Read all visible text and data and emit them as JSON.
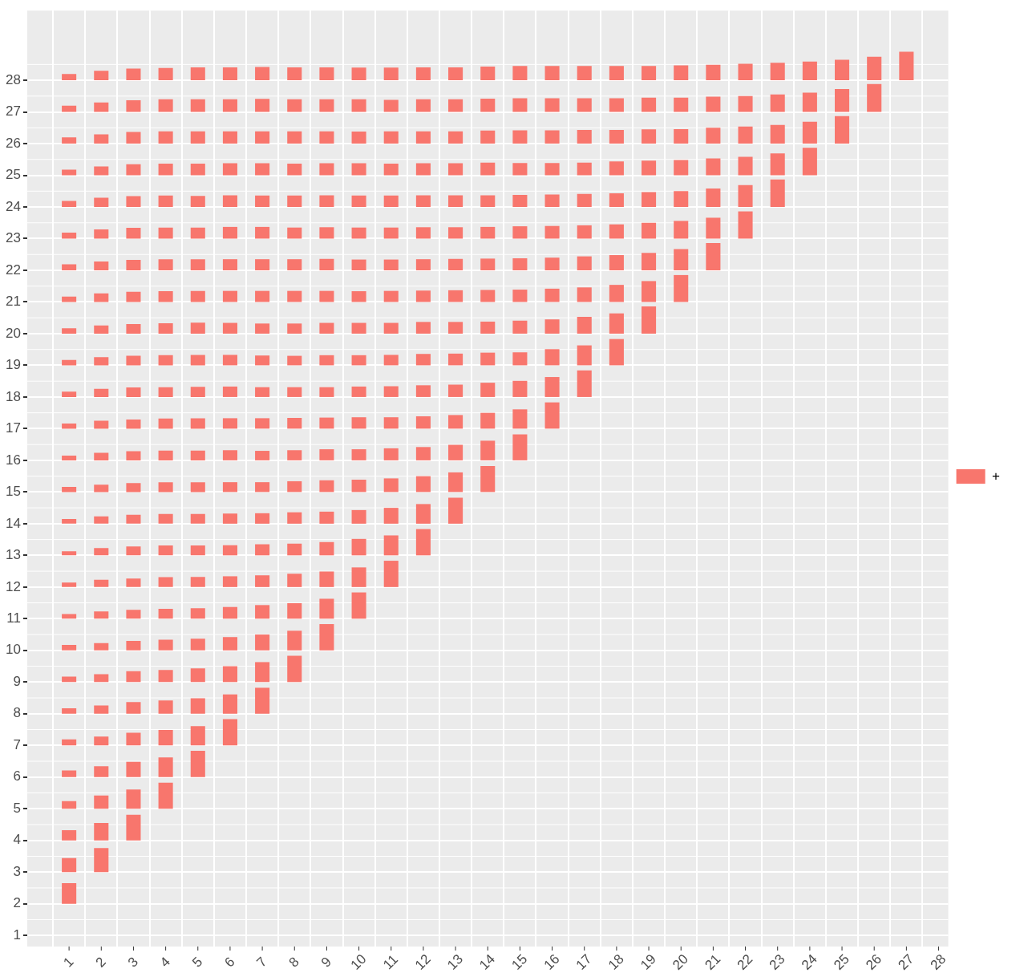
{
  "chart_data": {
    "type": "bar",
    "legend": "right",
    "grid": true,
    "xlim": [
      -0.3,
      28.3
    ],
    "ylim": [
      0.65,
      30.2
    ],
    "xticks": [
      1,
      2,
      3,
      4,
      5,
      6,
      7,
      8,
      9,
      10,
      11,
      12,
      13,
      14,
      15,
      16,
      17,
      18,
      19,
      20,
      21,
      22,
      23,
      24,
      25,
      26,
      27,
      28
    ],
    "yticks": [
      1,
      2,
      3,
      4,
      5,
      6,
      7,
      8,
      9,
      10,
      11,
      12,
      13,
      14,
      15,
      16,
      17,
      18,
      19,
      20,
      21,
      22,
      23,
      24,
      25,
      26,
      27,
      28
    ],
    "series": [
      {
        "name": "+",
        "color": "#f8766d",
        "x": [
          1
        ],
        "base": [
          2
        ],
        "values": [
          0.65
        ]
      },
      {
        "color": "#f8766d",
        "x": [
          1,
          2
        ],
        "base": [
          3,
          3
        ],
        "values": [
          0.44,
          0.76
        ]
      },
      {
        "color": "#f8766d",
        "x": [
          1,
          2,
          3
        ],
        "base": [
          4,
          4,
          4
        ],
        "values": [
          0.32,
          0.55,
          0.81
        ]
      },
      {
        "color": "#f8766d",
        "x": [
          1,
          2,
          3,
          4
        ],
        "base": [
          5,
          5,
          5,
          5
        ],
        "values": [
          0.24,
          0.42,
          0.61,
          0.82
        ]
      },
      {
        "color": "#f8766d",
        "x": [
          1,
          2,
          3,
          4,
          5
        ],
        "base": [
          6,
          6,
          6,
          6,
          6
        ],
        "values": [
          0.21,
          0.34,
          0.48,
          0.62,
          0.83
        ]
      },
      {
        "color": "#f8766d",
        "x": [
          1,
          2,
          3,
          4,
          5,
          6
        ],
        "base": [
          7,
          7,
          7,
          7,
          7,
          7
        ],
        "values": [
          0.19,
          0.28,
          0.4,
          0.49,
          0.61,
          0.83
        ]
      },
      {
        "color": "#f8766d",
        "x": [
          1,
          2,
          3,
          4,
          5,
          6,
          7
        ],
        "base": [
          8,
          8,
          8,
          8,
          8,
          8,
          8
        ],
        "values": [
          0.17,
          0.26,
          0.37,
          0.42,
          0.49,
          0.61,
          0.82
        ]
      },
      {
        "color": "#f8766d",
        "x": [
          1,
          2,
          3,
          4,
          5,
          6,
          7,
          8
        ],
        "base": [
          9,
          9,
          9,
          9,
          9,
          9,
          9,
          9
        ],
        "values": [
          0.17,
          0.25,
          0.34,
          0.38,
          0.43,
          0.5,
          0.63,
          0.83
        ]
      },
      {
        "color": "#f8766d",
        "x": [
          1,
          2,
          3,
          4,
          5,
          6,
          7,
          8,
          9
        ],
        "base": [
          10,
          10,
          10,
          10,
          10,
          10,
          10,
          10,
          10
        ],
        "values": [
          0.17,
          0.23,
          0.3,
          0.34,
          0.37,
          0.42,
          0.5,
          0.62,
          0.83
        ]
      },
      {
        "color": "#f8766d",
        "x": [
          1,
          2,
          3,
          4,
          5,
          6,
          7,
          8,
          9,
          10
        ],
        "base": [
          11,
          11,
          11,
          11,
          11,
          11,
          11,
          11,
          11,
          11
        ],
        "values": [
          0.15,
          0.23,
          0.28,
          0.31,
          0.33,
          0.37,
          0.43,
          0.49,
          0.63,
          0.83
        ]
      },
      {
        "color": "#f8766d",
        "x": [
          1,
          2,
          3,
          4,
          5,
          6,
          7,
          8,
          9,
          10,
          11
        ],
        "base": [
          12,
          12,
          12,
          12,
          12,
          12,
          12,
          12,
          12,
          12,
          12
        ],
        "values": [
          0.14,
          0.23,
          0.27,
          0.31,
          0.32,
          0.34,
          0.37,
          0.42,
          0.49,
          0.62,
          0.83
        ]
      },
      {
        "color": "#f8766d",
        "x": [
          1,
          2,
          3,
          4,
          5,
          6,
          7,
          8,
          9,
          10,
          11,
          12
        ],
        "base": [
          13,
          13,
          13,
          13,
          13,
          13,
          13,
          13,
          13,
          13,
          13,
          13
        ],
        "values": [
          0.13,
          0.23,
          0.28,
          0.31,
          0.31,
          0.32,
          0.35,
          0.37,
          0.42,
          0.52,
          0.63,
          0.83
        ]
      },
      {
        "color": "#f8766d",
        "x": [
          1,
          2,
          3,
          4,
          5,
          6,
          7,
          8,
          9,
          10,
          11,
          12,
          13
        ],
        "base": [
          14,
          14,
          14,
          14,
          14,
          14,
          14,
          14,
          14,
          14,
          14,
          14,
          14
        ],
        "values": [
          0.15,
          0.23,
          0.28,
          0.31,
          0.31,
          0.32,
          0.33,
          0.36,
          0.38,
          0.43,
          0.5,
          0.62,
          0.82
        ]
      },
      {
        "color": "#f8766d",
        "x": [
          1,
          2,
          3,
          4,
          5,
          6,
          7,
          8,
          9,
          10,
          11,
          12,
          13,
          14
        ],
        "base": [
          15,
          15,
          15,
          15,
          15,
          15,
          15,
          15,
          15,
          15,
          15,
          15,
          15,
          15
        ],
        "values": [
          0.16,
          0.23,
          0.28,
          0.31,
          0.31,
          0.31,
          0.31,
          0.34,
          0.37,
          0.39,
          0.43,
          0.5,
          0.62,
          0.82
        ]
      },
      {
        "color": "#f8766d",
        "x": [
          1,
          2,
          3,
          4,
          5,
          6,
          7,
          8,
          9,
          10,
          11,
          12,
          13,
          14,
          15
        ],
        "base": [
          16,
          16,
          16,
          16,
          16,
          16,
          16,
          16,
          16,
          16,
          16,
          16,
          16,
          16,
          16
        ],
        "values": [
          0.15,
          0.24,
          0.29,
          0.31,
          0.31,
          0.32,
          0.3,
          0.32,
          0.35,
          0.35,
          0.38,
          0.42,
          0.49,
          0.62,
          0.82
        ]
      },
      {
        "color": "#f8766d",
        "x": [
          1,
          2,
          3,
          4,
          5,
          6,
          7,
          8,
          9,
          10,
          11,
          12,
          13,
          14,
          15,
          16
        ],
        "base": [
          17,
          17,
          17,
          17,
          17,
          17,
          17,
          17,
          17,
          17,
          17,
          17,
          17,
          17,
          17,
          17
        ],
        "values": [
          0.16,
          0.25,
          0.29,
          0.32,
          0.33,
          0.33,
          0.33,
          0.34,
          0.35,
          0.36,
          0.36,
          0.39,
          0.43,
          0.5,
          0.61,
          0.83
        ]
      },
      {
        "color": "#f8766d",
        "x": [
          1,
          2,
          3,
          4,
          5,
          6,
          7,
          8,
          9,
          10,
          11,
          12,
          13,
          14,
          15,
          16,
          17
        ],
        "base": [
          18,
          18,
          18,
          18,
          18,
          18,
          18,
          18,
          18,
          18,
          18,
          18,
          18,
          18,
          18,
          18,
          18
        ],
        "values": [
          0.17,
          0.26,
          0.3,
          0.31,
          0.32,
          0.33,
          0.31,
          0.31,
          0.31,
          0.33,
          0.34,
          0.37,
          0.39,
          0.45,
          0.51,
          0.63,
          0.84
        ]
      },
      {
        "color": "#f8766d",
        "x": [
          1,
          2,
          3,
          4,
          5,
          6,
          7,
          8,
          9,
          10,
          11,
          12,
          13,
          14,
          15,
          16,
          17,
          18
        ],
        "base": [
          19,
          19,
          19,
          19,
          19,
          19,
          19,
          19,
          19,
          19,
          19,
          19,
          19,
          19,
          19,
          19,
          19,
          19
        ],
        "values": [
          0.17,
          0.26,
          0.3,
          0.32,
          0.33,
          0.33,
          0.31,
          0.3,
          0.32,
          0.32,
          0.33,
          0.36,
          0.37,
          0.4,
          0.41,
          0.51,
          0.63,
          0.83
        ]
      },
      {
        "color": "#f8766d",
        "x": [
          1,
          2,
          3,
          4,
          5,
          6,
          7,
          8,
          9,
          10,
          11,
          12,
          13,
          14,
          15,
          16,
          17,
          18,
          19
        ],
        "base": [
          20,
          20,
          20,
          20,
          20,
          20,
          20,
          20,
          20,
          20,
          20,
          20,
          20,
          20,
          20,
          20,
          20,
          20,
          20
        ],
        "values": [
          0.17,
          0.26,
          0.3,
          0.33,
          0.35,
          0.34,
          0.32,
          0.32,
          0.34,
          0.34,
          0.34,
          0.37,
          0.37,
          0.38,
          0.41,
          0.45,
          0.53,
          0.64,
          0.86
        ]
      },
      {
        "color": "#f8766d",
        "x": [
          1,
          2,
          3,
          4,
          5,
          6,
          7,
          8,
          9,
          10,
          11,
          12,
          13,
          14,
          15,
          16,
          17,
          18,
          19,
          20
        ],
        "base": [
          21,
          21,
          21,
          21,
          21,
          21,
          21,
          21,
          21,
          21,
          21,
          21,
          21,
          21,
          21,
          21,
          21,
          21,
          21,
          21
        ],
        "values": [
          0.17,
          0.27,
          0.32,
          0.34,
          0.35,
          0.35,
          0.35,
          0.35,
          0.35,
          0.34,
          0.35,
          0.36,
          0.37,
          0.38,
          0.39,
          0.42,
          0.46,
          0.54,
          0.66,
          0.85
        ]
      },
      {
        "color": "#f8766d",
        "x": [
          1,
          2,
          3,
          4,
          5,
          6,
          7,
          8,
          9,
          10,
          11,
          12,
          13,
          14,
          15,
          16,
          17,
          18,
          19,
          20,
          21
        ],
        "base": [
          22,
          22,
          22,
          22,
          22,
          22,
          22,
          22,
          22,
          22,
          22,
          22,
          22,
          22,
          22,
          22,
          22,
          22,
          22,
          22,
          22
        ],
        "values": [
          0.19,
          0.28,
          0.33,
          0.35,
          0.35,
          0.35,
          0.35,
          0.35,
          0.36,
          0.34,
          0.34,
          0.35,
          0.36,
          0.37,
          0.38,
          0.4,
          0.44,
          0.48,
          0.55,
          0.67,
          0.86
        ]
      },
      {
        "color": "#f8766d",
        "x": [
          1,
          2,
          3,
          4,
          5,
          6,
          7,
          8,
          9,
          10,
          11,
          12,
          13,
          14,
          15,
          16,
          17,
          18,
          19,
          20,
          21,
          22
        ],
        "base": [
          23,
          23,
          23,
          23,
          23,
          23,
          23,
          23,
          23,
          23,
          23,
          23,
          23,
          23,
          23,
          23,
          23,
          23,
          23,
          23,
          23,
          23
        ],
        "values": [
          0.19,
          0.29,
          0.34,
          0.35,
          0.35,
          0.37,
          0.37,
          0.35,
          0.36,
          0.35,
          0.35,
          0.36,
          0.36,
          0.37,
          0.39,
          0.4,
          0.42,
          0.45,
          0.5,
          0.56,
          0.66,
          0.86
        ]
      },
      {
        "color": "#f8766d",
        "x": [
          1,
          2,
          3,
          4,
          5,
          6,
          7,
          8,
          9,
          10,
          11,
          12,
          13,
          14,
          15,
          16,
          17,
          18,
          19,
          20,
          21,
          22,
          23
        ],
        "base": [
          24,
          24,
          24,
          24,
          24,
          24,
          24,
          24,
          24,
          24,
          24,
          24,
          24,
          24,
          24,
          24,
          24,
          24,
          24,
          24,
          24,
          24,
          24
        ],
        "values": [
          0.19,
          0.29,
          0.34,
          0.36,
          0.35,
          0.37,
          0.36,
          0.36,
          0.37,
          0.36,
          0.36,
          0.37,
          0.37,
          0.37,
          0.38,
          0.39,
          0.41,
          0.43,
          0.47,
          0.5,
          0.58,
          0.69,
          0.87
        ]
      },
      {
        "color": "#f8766d",
        "x": [
          1,
          2,
          3,
          4,
          5,
          6,
          7,
          8,
          9,
          10,
          11,
          12,
          13,
          14,
          15,
          16,
          17,
          18,
          19,
          20,
          21,
          22,
          23,
          24
        ],
        "base": [
          25,
          25,
          25,
          25,
          25,
          25,
          25,
          25,
          25,
          25,
          25,
          25,
          25,
          25,
          25,
          25,
          25,
          25,
          25,
          25,
          25,
          25,
          25,
          25
        ],
        "values": [
          0.18,
          0.28,
          0.35,
          0.37,
          0.37,
          0.38,
          0.38,
          0.37,
          0.38,
          0.38,
          0.37,
          0.38,
          0.38,
          0.4,
          0.39,
          0.39,
          0.4,
          0.44,
          0.46,
          0.48,
          0.53,
          0.58,
          0.69,
          0.87
        ]
      },
      {
        "color": "#f8766d",
        "x": [
          1,
          2,
          3,
          4,
          5,
          6,
          7,
          8,
          9,
          10,
          11,
          12,
          13,
          14,
          15,
          16,
          17,
          18,
          19,
          20,
          21,
          22,
          23,
          24,
          25
        ],
        "base": [
          26,
          26,
          26,
          26,
          26,
          26,
          26,
          26,
          26,
          26,
          26,
          26,
          26,
          26,
          26,
          26,
          26,
          26,
          26,
          26,
          26,
          26,
          26,
          26,
          26
        ],
        "values": [
          0.2,
          0.29,
          0.37,
          0.39,
          0.39,
          0.39,
          0.39,
          0.39,
          0.39,
          0.38,
          0.39,
          0.39,
          0.39,
          0.41,
          0.42,
          0.42,
          0.43,
          0.43,
          0.45,
          0.46,
          0.5,
          0.54,
          0.59,
          0.69,
          0.87
        ]
      },
      {
        "color": "#f8766d",
        "x": [
          1,
          2,
          3,
          4,
          5,
          6,
          7,
          8,
          9,
          10,
          11,
          12,
          13,
          14,
          15,
          16,
          17,
          18,
          19,
          20,
          21,
          22,
          23,
          24,
          25,
          26
        ],
        "base": [
          27,
          27,
          27,
          27,
          27,
          27,
          27,
          27,
          27,
          27,
          27,
          27,
          27,
          27,
          27,
          27,
          27,
          27,
          27,
          27,
          27,
          27,
          27,
          27,
          27,
          27
        ],
        "values": [
          0.2,
          0.3,
          0.37,
          0.4,
          0.4,
          0.4,
          0.41,
          0.4,
          0.4,
          0.4,
          0.38,
          0.4,
          0.4,
          0.42,
          0.43,
          0.43,
          0.43,
          0.43,
          0.45,
          0.45,
          0.48,
          0.5,
          0.55,
          0.61,
          0.72,
          0.88
        ]
      },
      {
        "color": "#f8766d",
        "x": [
          1,
          2,
          3,
          4,
          5,
          6,
          7,
          8,
          9,
          10,
          11,
          12,
          13,
          14,
          15,
          16,
          17,
          18,
          19,
          20,
          21,
          22,
          23,
          24,
          25,
          26,
          27
        ],
        "base": [
          28,
          28,
          28,
          28,
          28,
          28,
          28,
          28,
          28,
          28,
          28,
          28,
          28,
          28,
          28,
          28,
          28,
          28,
          28,
          28,
          28,
          28,
          28,
          28,
          28,
          28,
          28
        ],
        "values": [
          0.2,
          0.3,
          0.37,
          0.39,
          0.41,
          0.41,
          0.42,
          0.41,
          0.41,
          0.4,
          0.4,
          0.41,
          0.41,
          0.43,
          0.45,
          0.45,
          0.45,
          0.45,
          0.45,
          0.47,
          0.49,
          0.52,
          0.55,
          0.59,
          0.65,
          0.74,
          0.9
        ]
      }
    ]
  }
}
